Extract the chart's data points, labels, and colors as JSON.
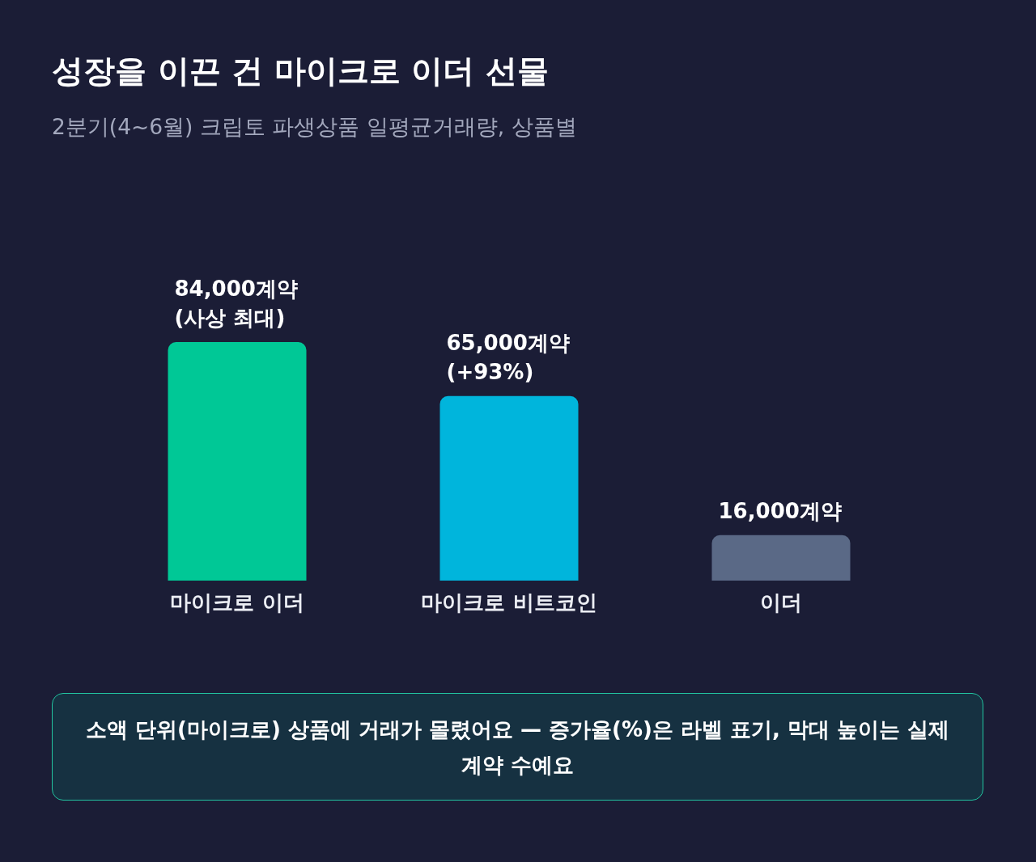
{
  "chart_data": {
    "type": "bar",
    "title": "성장을 이끈 건 마이크로 이더 선물",
    "subtitle": "2분기(4~6월) 크립토 파생상품 일평균거래량, 상품별",
    "categories": [
      "마이크로 이더",
      "마이크로 비트코인",
      "이더"
    ],
    "values": [
      84000,
      65000,
      16000
    ],
    "colors": [
      "#00c896",
      "#00b5dc",
      "#5a6986"
    ],
    "value_labels": [
      "84,000계약\n(사상 최대)",
      "65,000계약\n(+93%)",
      "16,000계약"
    ],
    "annotations": [
      "소액 단위(마이크로) 상품에 거래가 몰렸어요 — 증가율(%)은 라벨 표기, 막대 높이는 실제 계약 수예요"
    ],
    "tick_labels": "x"
  }
}
